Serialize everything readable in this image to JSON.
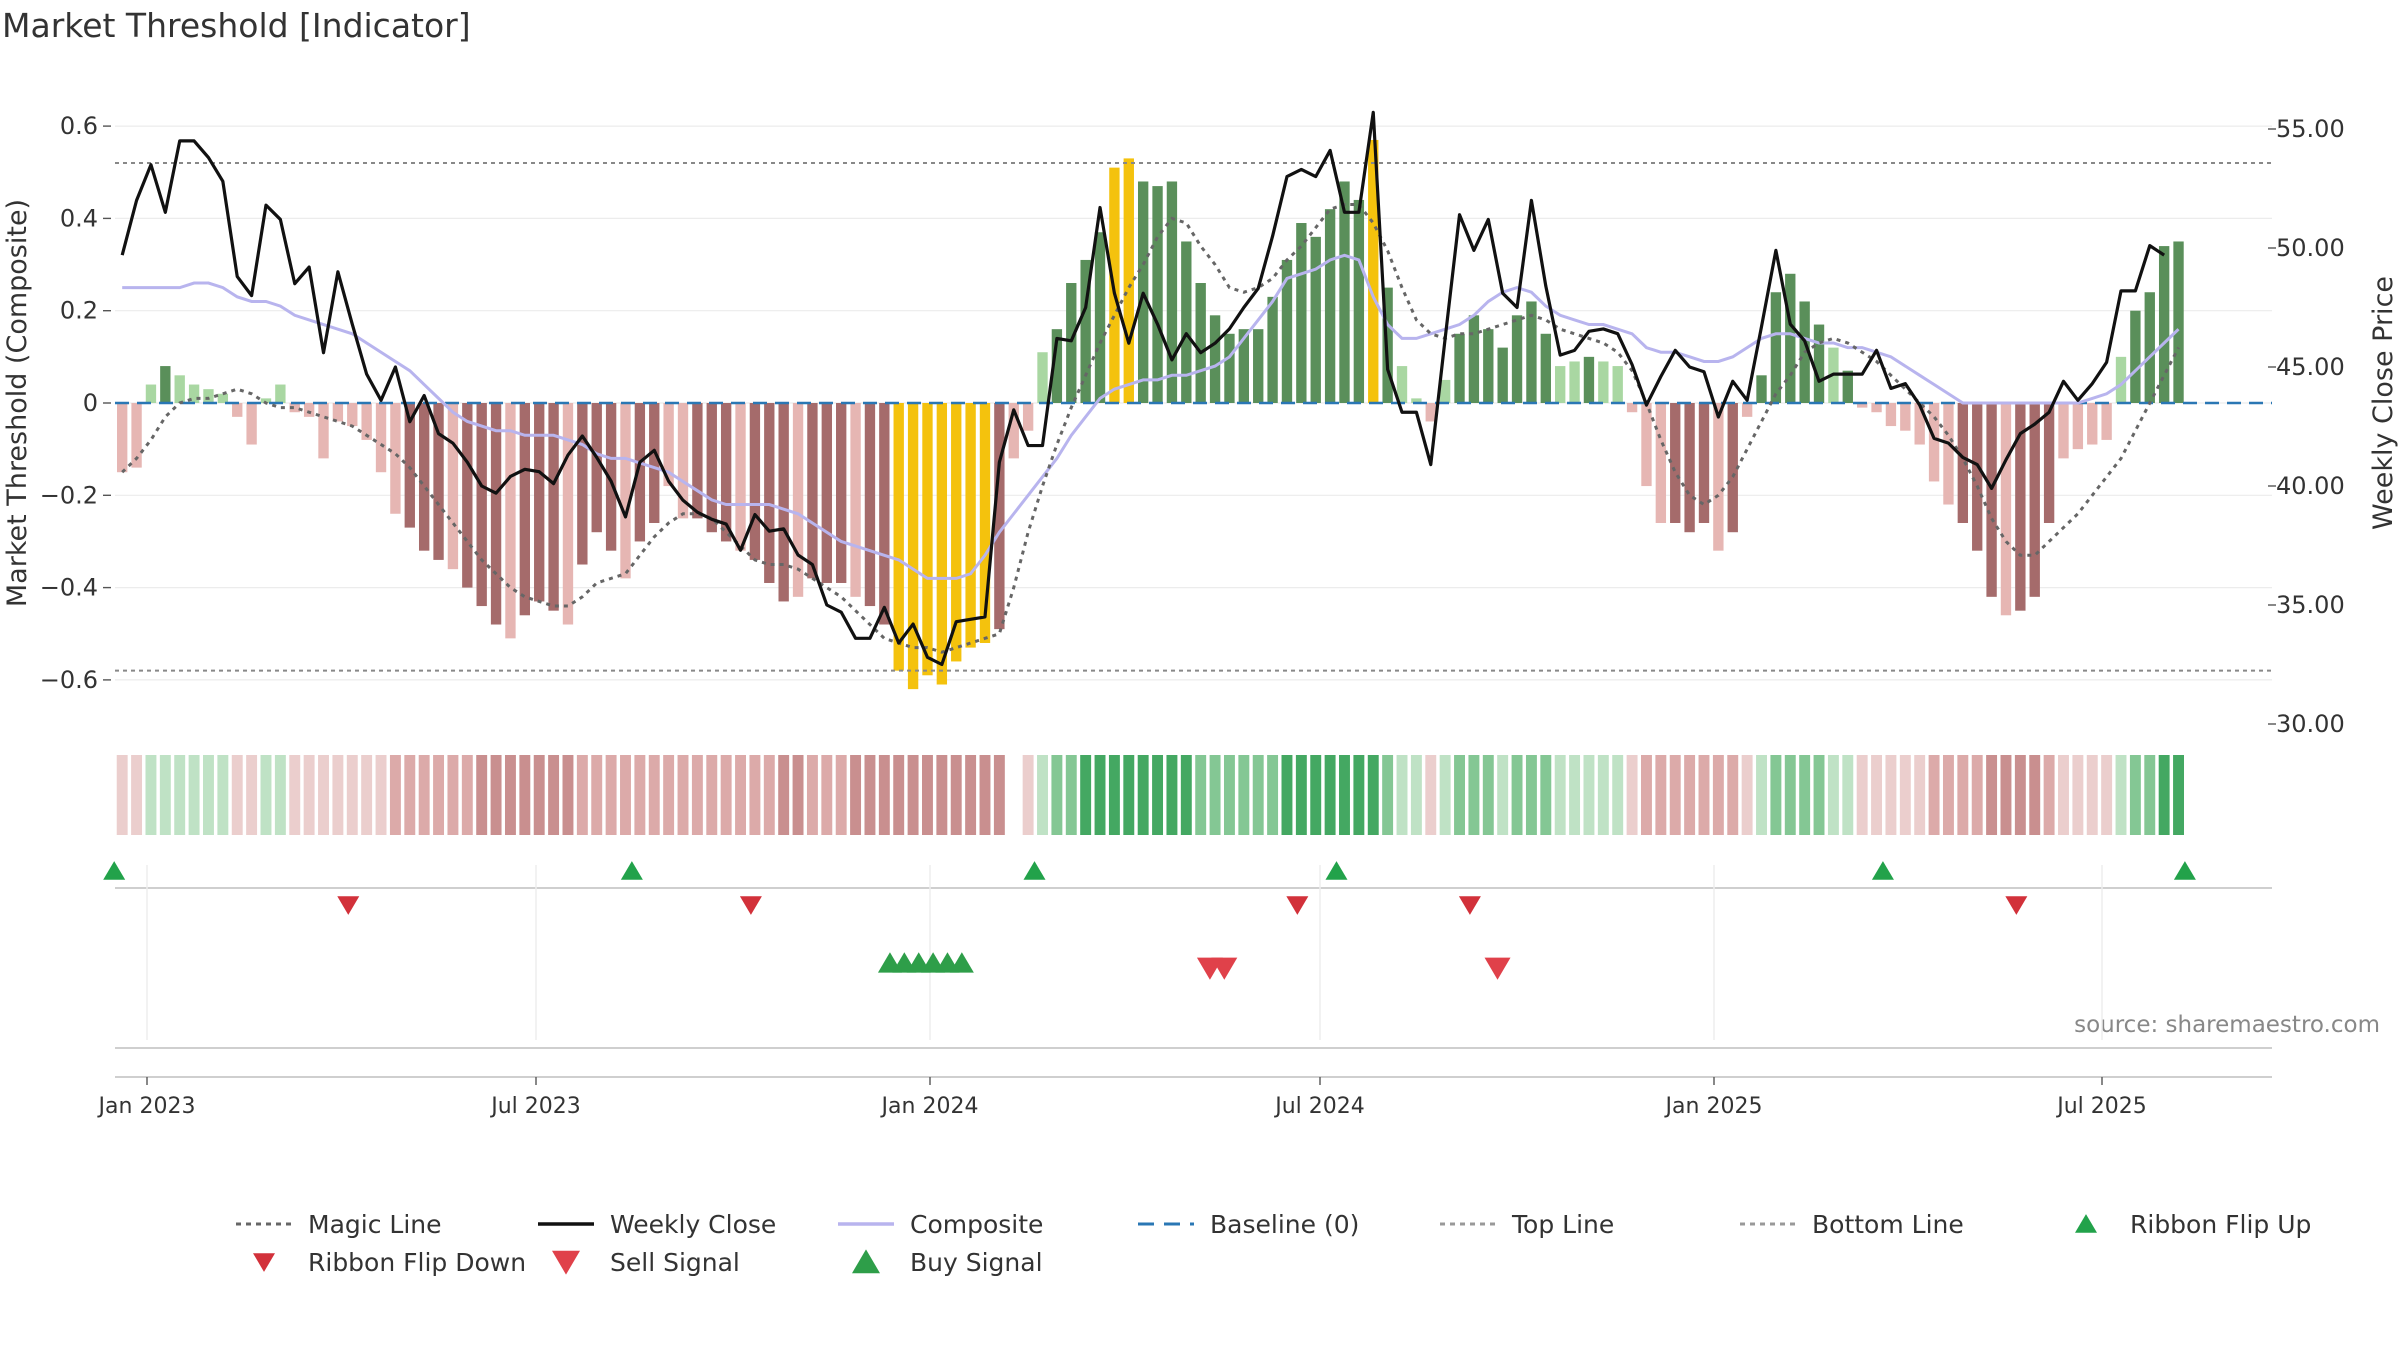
{
  "title": "Market Threshold [Indicator]",
  "source": "source: sharemaestro.com",
  "chart_data": {
    "type": "bar",
    "title": "Market Threshold [Indicator]",
    "ylabel_left": "Market Threshold (Composite)",
    "ylabel_right": "Weekly Close Price",
    "ylim_left": [
      -0.7,
      0.7
    ],
    "ylim_right": [
      30,
      55.5
    ],
    "left_ticks": [
      "0.6",
      "0.4",
      "0.2",
      "0",
      "−0.2",
      "−0.4",
      "−0.6"
    ],
    "left_tick_values": [
      0.6,
      0.4,
      0.2,
      0,
      -0.2,
      -0.4,
      -0.6
    ],
    "right_ticks": [
      "55.00",
      "50.00",
      "45.00",
      "40.00",
      "35.00",
      "30.00"
    ],
    "right_tick_values": [
      55,
      50,
      45,
      40,
      35,
      30
    ],
    "x_ticks": [
      "Jan 2023",
      "Jul 2023",
      "Jan 2024",
      "Jul 2024",
      "Jan 2025",
      "Jul 2025"
    ],
    "x_tick_weeks": [
      1,
      37,
      53.5,
      89.5,
      125.5,
      162
    ],
    "weeks": 150,
    "top_line": 0.52,
    "bottom_line": -0.58,
    "colors": {
      "strong_pos": "#5a8f5a",
      "weak_pos": "#a9d7a2",
      "strong_neg": "#a56b6b",
      "weak_neg": "#e6b6b3",
      "extreme": "#f4c20d",
      "close": "#111111",
      "composite": "#b8b4ee",
      "magic": "#666666",
      "baseline": "#2a77b4",
      "threshold": "#888888",
      "flip_up": "#22a24a",
      "flip_down": "#d2313a",
      "buy": "#2e9e49",
      "sell": "#e0414a"
    },
    "weekly_close": [
      49.7,
      52.0,
      53.5,
      51.5,
      54.5,
      54.5,
      53.8,
      52.8,
      48.8,
      48.0,
      51.8,
      51.2,
      48.5,
      49.2,
      45.6,
      49.0,
      46.8,
      44.7,
      43.6,
      45.0,
      42.7,
      43.8,
      42.2,
      41.8,
      41.0,
      40.0,
      39.7,
      40.4,
      40.7,
      40.6,
      40.1,
      41.3,
      42.1,
      41.2,
      40.2,
      38.7,
      41.0,
      41.5,
      40.2,
      39.4,
      38.9,
      38.6,
      38.4,
      37.3,
      38.8,
      38.1,
      38.2,
      37.1,
      36.7,
      35.0,
      34.7,
      33.6,
      33.6,
      34.9,
      33.4,
      34.2,
      32.8,
      32.5,
      34.3,
      34.4,
      34.5,
      41.0,
      43.2,
      41.7,
      41.7,
      46.2,
      46.1,
      47.5,
      51.7,
      48.1,
      46.0,
      48.1,
      46.8,
      45.3,
      46.4,
      45.6,
      46.0,
      46.6,
      47.5,
      48.3,
      50.5,
      53.0,
      53.3,
      53.0,
      54.1,
      51.5,
      51.5,
      55.7,
      44.9,
      43.1,
      43.1,
      40.9,
      46.2,
      51.4,
      49.9,
      51.2,
      48.1,
      47.5,
      52.0,
      48.4,
      45.5,
      45.7,
      46.5,
      46.6,
      46.4,
      45.1,
      43.4,
      44.6,
      45.7,
      45.0,
      44.8,
      42.9,
      44.4,
      43.6,
      46.7,
      49.9,
      46.8,
      46.1,
      44.4,
      44.7,
      44.7,
      44.7,
      45.7,
      44.1,
      44.3,
      43.4,
      42.0,
      41.8,
      41.2,
      40.9,
      39.9,
      41.1,
      42.2,
      42.6,
      43.1,
      44.4,
      43.6,
      44.3,
      45.2,
      48.2,
      48.2,
      50.1,
      49.7
    ],
    "bars": [
      -0.15,
      -0.14,
      0.04,
      0.08,
      0.06,
      0.04,
      0.03,
      0.02,
      -0.03,
      -0.09,
      0.01,
      0.04,
      -0.02,
      -0.03,
      -0.12,
      -0.04,
      -0.05,
      -0.08,
      -0.15,
      -0.24,
      -0.27,
      -0.32,
      -0.34,
      -0.36,
      -0.4,
      -0.44,
      -0.48,
      -0.51,
      -0.46,
      -0.43,
      -0.45,
      -0.48,
      -0.35,
      -0.28,
      -0.32,
      -0.38,
      -0.3,
      -0.26,
      -0.18,
      -0.25,
      -0.25,
      -0.28,
      -0.3,
      -0.32,
      -0.34,
      -0.39,
      -0.43,
      -0.42,
      -0.38,
      -0.39,
      -0.39,
      -0.42,
      -0.44,
      -0.48,
      -0.58,
      -0.62,
      -0.59,
      -0.61,
      -0.56,
      -0.53,
      -0.52,
      -0.49,
      -0.12,
      -0.06,
      0.11,
      0.16,
      0.26,
      0.31,
      0.37,
      0.51,
      0.53,
      0.48,
      0.47,
      0.48,
      0.35,
      0.26,
      0.19,
      0.15,
      0.16,
      0.16,
      0.23,
      0.31,
      0.39,
      0.36,
      0.42,
      0.48,
      0.44,
      0.57,
      0.25,
      0.08,
      0.01,
      -0.04,
      0.05,
      0.15,
      0.19,
      0.16,
      0.12,
      0.19,
      0.22,
      0.15,
      0.08,
      0.09,
      0.1,
      0.09,
      0.08,
      -0.02,
      -0.18,
      -0.26,
      -0.26,
      -0.28,
      -0.26,
      -0.32,
      -0.28,
      -0.03,
      0.06,
      0.24,
      0.28,
      0.22,
      0.17,
      0.12,
      0.07,
      -0.01,
      -0.02,
      -0.05,
      -0.06,
      -0.09,
      -0.17,
      -0.22,
      -0.26,
      -0.32,
      -0.42,
      -0.46,
      -0.45,
      -0.42,
      -0.26,
      -0.12,
      -0.1,
      -0.09,
      -0.08,
      0.1,
      0.2,
      0.24,
      0.34,
      0.35
    ],
    "composite": [
      0.25,
      0.25,
      0.25,
      0.25,
      0.25,
      0.26,
      0.26,
      0.25,
      0.23,
      0.22,
      0.22,
      0.21,
      0.19,
      0.18,
      0.17,
      0.16,
      0.15,
      0.13,
      0.11,
      0.09,
      0.07,
      0.04,
      0.01,
      -0.02,
      -0.04,
      -0.05,
      -0.06,
      -0.06,
      -0.07,
      -0.07,
      -0.07,
      -0.08,
      -0.09,
      -0.11,
      -0.12,
      -0.12,
      -0.13,
      -0.14,
      -0.15,
      -0.17,
      -0.19,
      -0.21,
      -0.22,
      -0.22,
      -0.22,
      -0.22,
      -0.23,
      -0.24,
      -0.26,
      -0.28,
      -0.3,
      -0.31,
      -0.32,
      -0.33,
      -0.34,
      -0.36,
      -0.38,
      -0.38,
      -0.38,
      -0.37,
      -0.33,
      -0.28,
      -0.24,
      -0.2,
      -0.16,
      -0.12,
      -0.07,
      -0.03,
      0.01,
      0.03,
      0.04,
      0.05,
      0.05,
      0.06,
      0.06,
      0.07,
      0.08,
      0.1,
      0.14,
      0.18,
      0.22,
      0.27,
      0.28,
      0.29,
      0.31,
      0.32,
      0.31,
      0.23,
      0.17,
      0.14,
      0.14,
      0.15,
      0.16,
      0.17,
      0.19,
      0.22,
      0.24,
      0.25,
      0.24,
      0.21,
      0.19,
      0.18,
      0.17,
      0.17,
      0.16,
      0.15,
      0.12,
      0.11,
      0.11,
      0.1,
      0.09,
      0.09,
      0.1,
      0.12,
      0.14,
      0.15,
      0.15,
      0.14,
      0.13,
      0.13,
      0.12,
      0.12,
      0.11,
      0.1,
      0.08,
      0.06,
      0.04,
      0.02,
      0.0,
      0.0,
      0.0,
      0.0,
      0.0,
      0.0,
      0.0,
      0.0,
      0.0,
      0.01,
      0.02,
      0.04,
      0.07,
      0.1,
      0.13,
      0.16
    ],
    "magic": [
      -0.15,
      -0.12,
      -0.08,
      -0.03,
      0.0,
      0.01,
      0.01,
      0.02,
      0.03,
      0.02,
      0.0,
      -0.01,
      -0.01,
      -0.02,
      -0.03,
      -0.04,
      -0.05,
      -0.07,
      -0.09,
      -0.11,
      -0.14,
      -0.18,
      -0.22,
      -0.26,
      -0.3,
      -0.34,
      -0.37,
      -0.4,
      -0.42,
      -0.43,
      -0.44,
      -0.44,
      -0.42,
      -0.39,
      -0.38,
      -0.37,
      -0.33,
      -0.29,
      -0.26,
      -0.24,
      -0.24,
      -0.25,
      -0.28,
      -0.31,
      -0.34,
      -0.35,
      -0.35,
      -0.36,
      -0.38,
      -0.4,
      -0.42,
      -0.45,
      -0.48,
      -0.51,
      -0.52,
      -0.53,
      -0.53,
      -0.54,
      -0.53,
      -0.52,
      -0.51,
      -0.5,
      -0.4,
      -0.28,
      -0.18,
      -0.09,
      -0.01,
      0.06,
      0.13,
      0.19,
      0.25,
      0.3,
      0.36,
      0.4,
      0.39,
      0.34,
      0.3,
      0.25,
      0.24,
      0.25,
      0.27,
      0.31,
      0.34,
      0.38,
      0.42,
      0.43,
      0.43,
      0.39,
      0.33,
      0.25,
      0.18,
      0.15,
      0.14,
      0.15,
      0.15,
      0.16,
      0.17,
      0.18,
      0.19,
      0.18,
      0.16,
      0.15,
      0.14,
      0.13,
      0.11,
      0.07,
      0.0,
      -0.08,
      -0.15,
      -0.2,
      -0.22,
      -0.2,
      -0.16,
      -0.1,
      -0.04,
      0.02,
      0.06,
      0.11,
      0.13,
      0.14,
      0.13,
      0.11,
      0.09,
      0.06,
      0.03,
      0.0,
      -0.03,
      -0.07,
      -0.12,
      -0.18,
      -0.25,
      -0.3,
      -0.33,
      -0.33,
      -0.3,
      -0.27,
      -0.24,
      -0.2,
      -0.16,
      -0.12,
      -0.06,
      0.0,
      0.06,
      0.12
    ],
    "markers": {
      "ribbon_flip_up_weeks": [
        1,
        37,
        65,
        86,
        124,
        145
      ],
      "ribbon_flip_down_weeks": [
        17,
        45,
        83,
        95,
        133
      ],
      "buy_signal_weeks": [
        53,
        54,
        55,
        56,
        57,
        58
      ],
      "sell_signal_weeks": [
        74,
        75,
        94
      ]
    },
    "legend": [
      {
        "label": "Magic Line",
        "kind": "dotted-line",
        "color": "#666666"
      },
      {
        "label": "Weekly Close",
        "kind": "solid-line",
        "color": "#111111"
      },
      {
        "label": "Composite",
        "kind": "solid-line",
        "color": "#b8b4ee"
      },
      {
        "label": "Baseline (0)",
        "kind": "dashed-line",
        "color": "#2a77b4"
      },
      {
        "label": "Top Line",
        "kind": "dotted-line",
        "color": "#999999"
      },
      {
        "label": "Bottom Line",
        "kind": "dotted-line",
        "color": "#999999"
      },
      {
        "label": "Ribbon Flip Up",
        "kind": "triangle-up-small",
        "color": "#22a24a"
      },
      {
        "label": "Ribbon Flip Down",
        "kind": "triangle-down-small",
        "color": "#d2313a"
      },
      {
        "label": "Sell Signal",
        "kind": "triangle-down",
        "color": "#e0414a"
      },
      {
        "label": "Buy Signal",
        "kind": "triangle-up",
        "color": "#2e9e49"
      }
    ]
  }
}
